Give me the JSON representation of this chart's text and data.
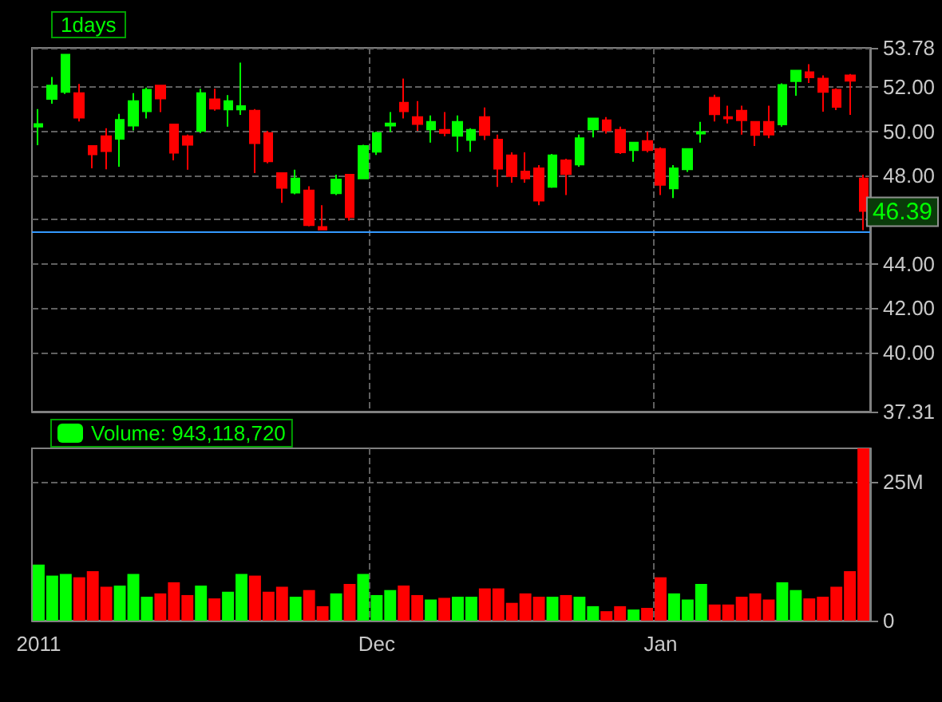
{
  "chart_data": [
    {
      "type": "candlestick",
      "title": "1days",
      "categories": [
        null,
        null,
        null,
        null,
        null,
        null,
        null,
        null,
        null,
        null,
        null,
        null,
        null,
        null,
        null,
        null,
        null,
        null,
        null,
        null,
        null,
        null,
        null,
        null,
        null,
        null,
        null,
        null,
        null,
        null,
        null,
        null,
        null,
        null,
        null,
        null,
        null,
        null,
        null,
        null,
        null,
        null,
        null,
        null,
        null,
        null,
        null,
        null,
        null,
        null,
        null,
        null,
        null,
        null,
        null,
        null,
        null,
        null,
        null,
        null,
        null,
        null
      ],
      "ohlc": [
        [
          50.21,
          51.01,
          49.37,
          50.33
        ],
        [
          51.47,
          52.46,
          51.25,
          52.07
        ],
        [
          51.78,
          53.47,
          51.69,
          53.47
        ],
        [
          51.73,
          52.15,
          50.45,
          50.62
        ],
        [
          49.34,
          49.34,
          48.33,
          48.96
        ],
        [
          49.78,
          50.14,
          48.28,
          49.1
        ],
        [
          49.66,
          50.79,
          48.4,
          50.52
        ],
        [
          50.26,
          51.73,
          50.04,
          51.37
        ],
        [
          50.91,
          51.98,
          50.58,
          51.88
        ],
        [
          52.07,
          52.07,
          50.87,
          51.49
        ],
        [
          50.31,
          50.31,
          48.69,
          49.03
        ],
        [
          49.78,
          49.85,
          48.26,
          49.39
        ],
        [
          50.02,
          51.93,
          49.92,
          51.73
        ],
        [
          51.45,
          51.93,
          50.94,
          51.03
        ],
        [
          50.99,
          51.64,
          50.21,
          51.37
        ],
        [
          50.99,
          53.11,
          50.75,
          51.14
        ],
        [
          50.94,
          51.01,
          48.11,
          49.46
        ],
        [
          49.92,
          50.02,
          48.55,
          48.64
        ],
        [
          48.11,
          48.11,
          46.76,
          47.44
        ],
        [
          47.22,
          48.26,
          47.15,
          47.87
        ],
        [
          47.32,
          47.51,
          45.7,
          45.75
        ],
        [
          45.67,
          46.66,
          45.55,
          45.55
        ],
        [
          47.2,
          48.04,
          47.12,
          47.82
        ],
        [
          48.04,
          48.04,
          45.96,
          46.11
        ],
        [
          47.87,
          49.39,
          47.87,
          49.34
        ],
        [
          49.08,
          49.99,
          48.93,
          49.92
        ],
        [
          50.26,
          50.87,
          49.97,
          50.36
        ],
        [
          51.3,
          52.39,
          50.58,
          50.91
        ],
        [
          50.65,
          51.37,
          50.02,
          50.33
        ],
        [
          50.09,
          50.72,
          49.49,
          50.43
        ],
        [
          50.07,
          50.87,
          49.78,
          49.92
        ],
        [
          49.8,
          50.72,
          49.08,
          50.43
        ],
        [
          49.61,
          50.14,
          49.08,
          50.07
        ],
        [
          50.65,
          51.08,
          49.61,
          49.83
        ],
        [
          49.63,
          49.85,
          47.49,
          48.31
        ],
        [
          48.91,
          49.05,
          47.68,
          47.97
        ],
        [
          48.18,
          49.05,
          47.68,
          47.87
        ],
        [
          48.33,
          48.47,
          46.66,
          46.86
        ],
        [
          47.49,
          48.98,
          47.44,
          48.91
        ],
        [
          48.69,
          48.76,
          47.12,
          48.06
        ],
        [
          48.5,
          49.85,
          48.4,
          49.69
        ],
        [
          50.09,
          50.58,
          49.73,
          50.58
        ],
        [
          50.5,
          50.65,
          49.9,
          50.04
        ],
        [
          50.07,
          50.21,
          48.98,
          49.05
        ],
        [
          49.15,
          49.49,
          48.62,
          49.49
        ],
        [
          49.56,
          49.99,
          49.05,
          49.15
        ],
        [
          49.2,
          49.27,
          47.12,
          47.58
        ],
        [
          47.41,
          48.47,
          46.98,
          48.33
        ],
        [
          48.28,
          49.2,
          48.16,
          49.2
        ],
        [
          49.9,
          50.43,
          49.49,
          49.97
        ],
        [
          51.52,
          51.66,
          50.45,
          50.77
        ],
        [
          50.65,
          51.16,
          50.36,
          50.58
        ],
        [
          50.94,
          51.16,
          49.85,
          50.5
        ],
        [
          50.43,
          50.43,
          49.34,
          49.83
        ],
        [
          50.43,
          51.16,
          49.69,
          49.85
        ],
        [
          50.31,
          52.17,
          50.21,
          52.1
        ],
        [
          52.27,
          52.75,
          51.61,
          52.75
        ],
        [
          52.68,
          53.04,
          52.19,
          52.44
        ],
        [
          52.39,
          52.53,
          50.89,
          51.78
        ],
        [
          51.88,
          51.95,
          50.96,
          51.11
        ],
        [
          52.53,
          52.6,
          50.75,
          52.29
        ],
        [
          47.87,
          48.04,
          45.53,
          46.39
        ]
      ],
      "colors": [
        "#00ff00",
        "#00ff00",
        "#00ff00",
        "#ff0000",
        "#ff0000",
        "#ff0000",
        "#00ff00",
        "#00ff00",
        "#00ff00",
        "#ff0000",
        "#ff0000",
        "#ff0000",
        "#00ff00",
        "#ff0000",
        "#00ff00",
        "#00ff00",
        "#ff0000",
        "#ff0000",
        "#ff0000",
        "#00ff00",
        "#ff0000",
        "#ff0000",
        "#00ff00",
        "#ff0000",
        "#00ff00",
        "#00ff00",
        "#00ff00",
        "#ff0000",
        "#ff0000",
        "#00ff00",
        "#ff0000",
        "#00ff00",
        "#00ff00",
        "#ff0000",
        "#ff0000",
        "#ff0000",
        "#ff0000",
        "#ff0000",
        "#00ff00",
        "#ff0000",
        "#00ff00",
        "#00ff00",
        "#ff0000",
        "#ff0000",
        "#00ff00",
        "#ff0000",
        "#ff0000",
        "#00ff00",
        "#00ff00",
        "#00ff00",
        "#ff0000",
        "#ff0000",
        "#ff0000",
        "#ff0000",
        "#ff0000",
        "#00ff00",
        "#00ff00",
        "#ff0000",
        "#ff0000",
        "#ff0000",
        "#ff0000",
        "#ff0000"
      ],
      "ylim": [
        37.31,
        53.78
      ],
      "yticks": [
        {
          "value": 37.31,
          "label": "37.31"
        },
        {
          "value": 40,
          "label": "40.00"
        },
        {
          "value": 42,
          "label": "42.00"
        },
        {
          "value": 44,
          "label": "44.00"
        },
        {
          "value": 46,
          "label": null
        },
        {
          "value": 48,
          "label": "48.00"
        },
        {
          "value": 50,
          "label": "50.00"
        },
        {
          "value": 52,
          "label": "52.00"
        },
        {
          "value": 53.78,
          "label": "53.78"
        }
      ],
      "ref_lines": [
        {
          "axis": "y",
          "value": 45.43,
          "color": "#3399ff"
        }
      ],
      "annotations": [
        {
          "text": "46.39",
          "y": 46.39
        }
      ],
      "grid": true,
      "tick_labels": "y"
    },
    {
      "type": "bar",
      "categories": [
        "2011",
        null,
        null,
        null,
        null,
        null,
        null,
        null,
        null,
        null,
        null,
        null,
        null,
        null,
        null,
        null,
        null,
        null,
        null,
        null,
        null,
        null,
        null,
        null,
        null,
        "Dec",
        null,
        null,
        null,
        null,
        null,
        null,
        null,
        null,
        null,
        null,
        null,
        null,
        null,
        null,
        null,
        null,
        null,
        null,
        null,
        null,
        "Jan",
        null,
        null,
        null,
        null,
        null,
        null,
        null,
        null,
        null,
        null,
        null,
        null,
        null,
        null,
        null
      ],
      "series": [
        {
          "name": "Volume: 943,118,720",
          "values": [
            10.1,
            8.1,
            8.4,
            7.8,
            8.9,
            6.1,
            6.3,
            8.4,
            4.3,
            4.9,
            6.9,
            4.6,
            6.3,
            4.0,
            5.2,
            8.4,
            8.1,
            5.2,
            6.1,
            4.3,
            5.5,
            2.6,
            4.9,
            6.6,
            8.4,
            4.6,
            5.5,
            6.3,
            4.6,
            3.8,
            4.1,
            4.3,
            4.3,
            5.8,
            5.8,
            3.2,
            4.9,
            4.3,
            4.3,
            4.6,
            4.3,
            2.6,
            1.7,
            2.6,
            2.0,
            2.3,
            7.8,
            4.9,
            3.8,
            6.6,
            2.9,
            2.9,
            4.3,
            4.9,
            3.8,
            6.9,
            5.5,
            4.0,
            4.3,
            6.1,
            8.9,
            31
          ],
          "colors": [
            "#00ff00",
            "#00ff00",
            "#00ff00",
            "#ff0000",
            "#ff0000",
            "#ff0000",
            "#00ff00",
            "#00ff00",
            "#00ff00",
            "#ff0000",
            "#ff0000",
            "#ff0000",
            "#00ff00",
            "#ff0000",
            "#00ff00",
            "#00ff00",
            "#ff0000",
            "#ff0000",
            "#ff0000",
            "#00ff00",
            "#ff0000",
            "#ff0000",
            "#00ff00",
            "#ff0000",
            "#00ff00",
            "#00ff00",
            "#00ff00",
            "#ff0000",
            "#ff0000",
            "#00ff00",
            "#ff0000",
            "#00ff00",
            "#00ff00",
            "#ff0000",
            "#ff0000",
            "#ff0000",
            "#ff0000",
            "#ff0000",
            "#00ff00",
            "#ff0000",
            "#00ff00",
            "#00ff00",
            "#ff0000",
            "#ff0000",
            "#00ff00",
            "#ff0000",
            "#ff0000",
            "#00ff00",
            "#00ff00",
            "#00ff00",
            "#ff0000",
            "#ff0000",
            "#ff0000",
            "#ff0000",
            "#ff0000",
            "#00ff00",
            "#00ff00",
            "#ff0000",
            "#ff0000",
            "#ff0000",
            "#ff0000",
            "#ff0000"
          ]
        }
      ],
      "ylim": [
        0,
        31
      ],
      "yticks": [
        0,
        {
          "value": 25,
          "label": "25M"
        }
      ],
      "grid": true,
      "legend": "top left"
    }
  ]
}
